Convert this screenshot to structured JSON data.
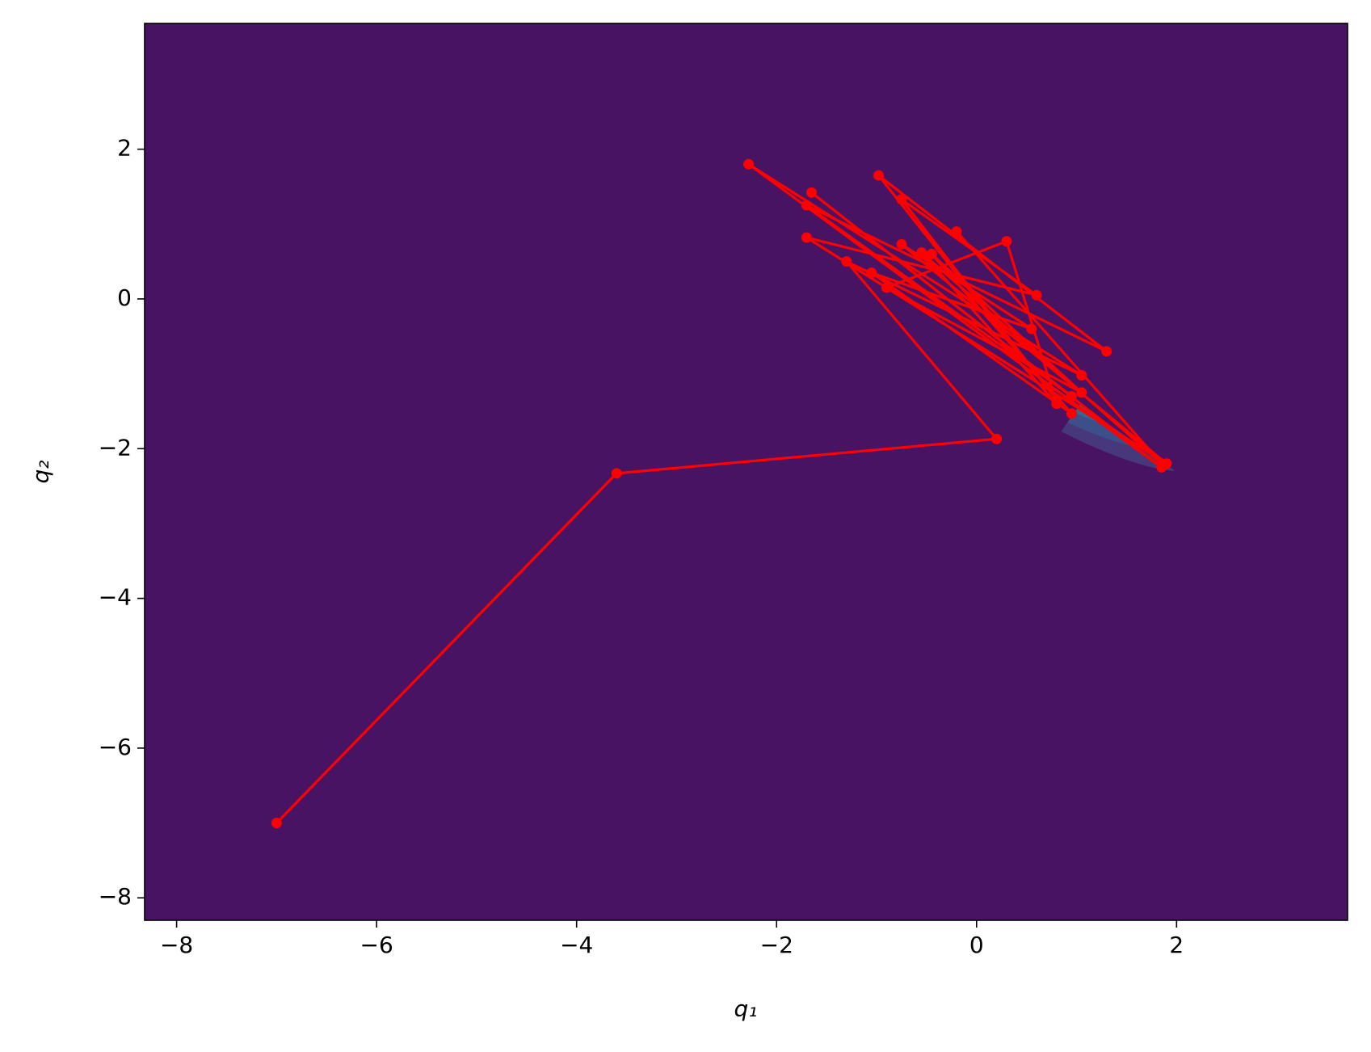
{
  "chart_data": {
    "type": "line",
    "xlabel": "q₁",
    "ylabel": "q₂",
    "xlim": [
      -8.32,
      3.71
    ],
    "ylim": [
      -8.3,
      3.68
    ],
    "xticks": [
      {
        "value": -8,
        "label": "−8"
      },
      {
        "value": -6,
        "label": "−6"
      },
      {
        "value": -4,
        "label": "−4"
      },
      {
        "value": -2,
        "label": "−2"
      },
      0,
      2
    ],
    "yticks": [
      {
        "value": -8,
        "label": "−8"
      },
      {
        "value": -6,
        "label": "−6"
      },
      {
        "value": -4,
        "label": "−4"
      },
      {
        "value": -2,
        "label": "−2"
      },
      0,
      2
    ],
    "series": [
      {
        "color": "#ff0000",
        "x": [
          -7.0,
          -3.6,
          0.2,
          -1.3,
          1.05,
          -2.28,
          1.85,
          -1.65,
          0.95,
          -1.7,
          1.3,
          -0.98,
          0.8,
          -0.75,
          0.6,
          -1.7,
          1.9,
          -0.75,
          0.55,
          -1.05,
          0.95,
          -0.45,
          1.05,
          -0.9,
          0.3,
          0.8,
          -0.55,
          1.85,
          -0.2
        ],
        "y": [
          -7.0,
          -2.33,
          -1.87,
          0.5,
          -1.02,
          1.8,
          -2.25,
          1.42,
          -1.3,
          1.25,
          -0.7,
          1.65,
          -1.35,
          1.33,
          0.05,
          0.82,
          -2.2,
          0.73,
          -0.4,
          0.35,
          -1.53,
          0.6,
          -1.25,
          0.15,
          0.77,
          -1.4,
          0.62,
          -2.2,
          0.9
        ]
      }
    ]
  }
}
